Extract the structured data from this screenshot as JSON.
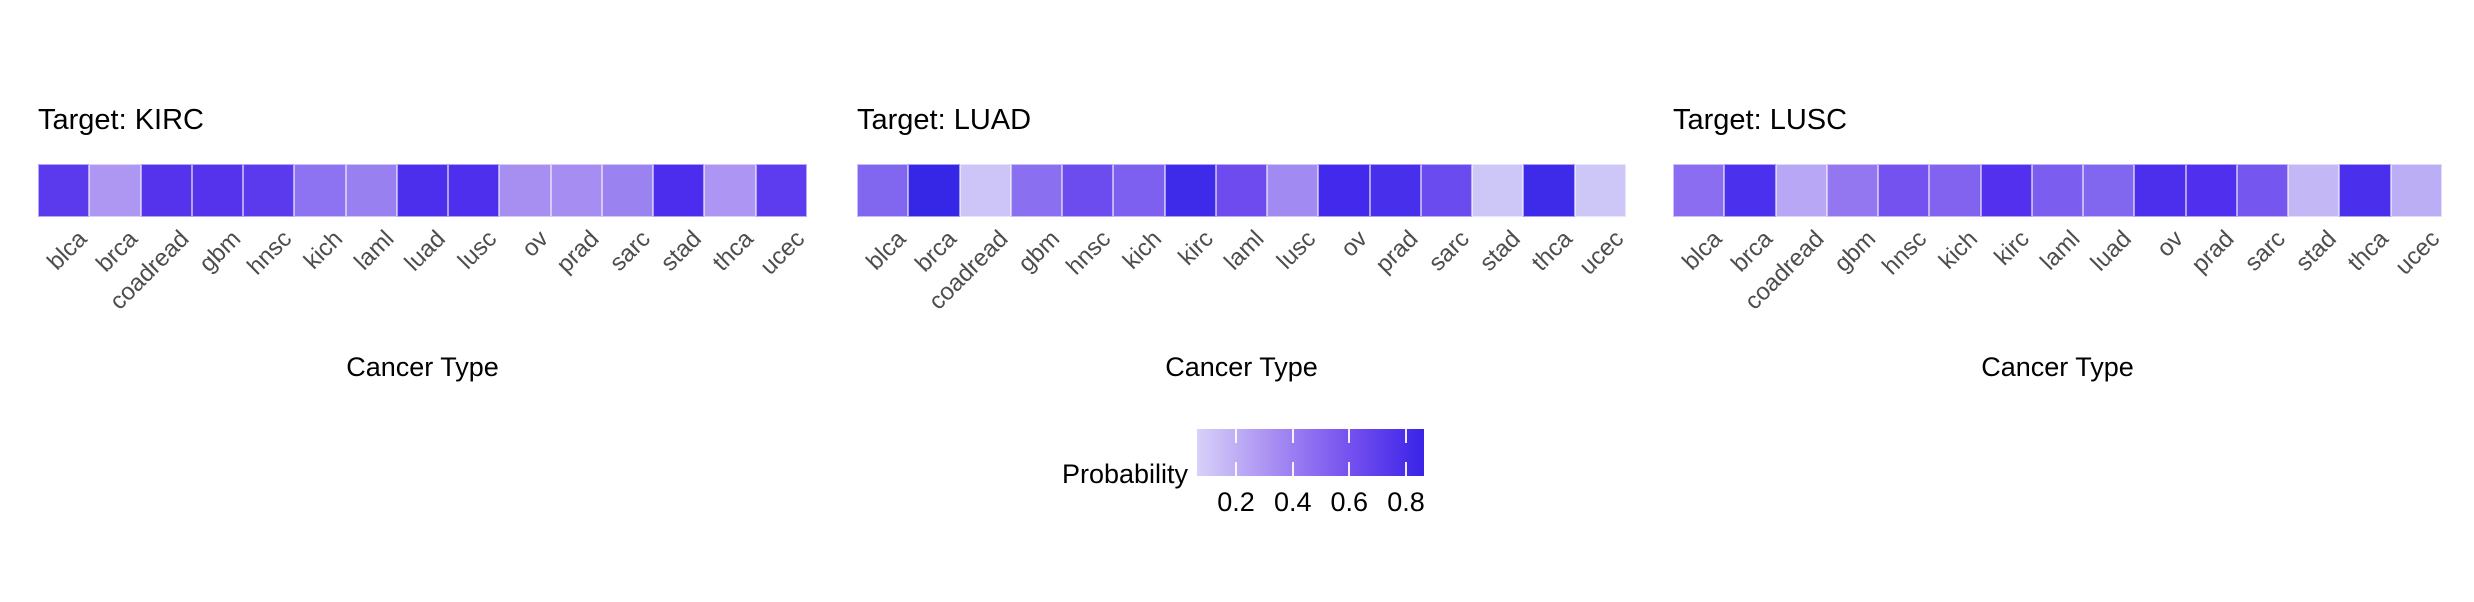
{
  "figure": {
    "background": "#FFFFFF",
    "x_axis_title": "Cancer Type"
  },
  "legend": {
    "title": "Probability",
    "tick_labels": [
      "0.2",
      "0.4",
      "0.6",
      "0.8"
    ],
    "tick_positions_pct": [
      17.2,
      42.2,
      67.1,
      92.1
    ],
    "gradient_stops": [
      "#D8D1F9",
      "#A88FF2",
      "#7551EF",
      "#3A23E8"
    ],
    "orientation": "horizontal"
  },
  "chart_data": [
    {
      "type": "heatmap",
      "title": "Target: KIRC",
      "xlabel": "Cancer Type",
      "legend_title": "Probability",
      "categories": [
        "blca",
        "brca",
        "coadread",
        "gbm",
        "hnsc",
        "kich",
        "laml",
        "luad",
        "lusc",
        "ov",
        "prad",
        "sarc",
        "stad",
        "thca",
        "ucec"
      ],
      "values": [
        0.62,
        0.3,
        0.65,
        0.65,
        0.62,
        0.42,
        0.38,
        0.69,
        0.68,
        0.33,
        0.34,
        0.37,
        0.69,
        0.31,
        0.61
      ],
      "colors": [
        "#5B3AEE",
        "#AE97F3",
        "#5533ED",
        "#5533ED",
        "#5B3AEE",
        "#8D73F1",
        "#9880F1",
        "#4C2EED",
        "#4E2FED",
        "#A78FF2",
        "#A58DF2",
        "#9B82F1",
        "#4C2CED",
        "#AC95F3",
        "#5D3BEE"
      ]
    },
    {
      "type": "heatmap",
      "title": "Target: LUAD",
      "xlabel": "Cancer Type",
      "legend_title": "Probability",
      "categories": [
        "blca",
        "brca",
        "coadread",
        "gbm",
        "hnsc",
        "kich",
        "kirc",
        "laml",
        "lusc",
        "ov",
        "prad",
        "sarc",
        "stad",
        "thca",
        "ucec"
      ],
      "values": [
        0.45,
        0.84,
        0.1,
        0.43,
        0.53,
        0.46,
        0.8,
        0.53,
        0.36,
        0.78,
        0.76,
        0.54,
        0.1,
        0.8,
        0.1
      ],
      "colors": [
        "#8167F0",
        "#3626E6",
        "#CDC4F8",
        "#8A70F0",
        "#6C4BEF",
        "#7E60F0",
        "#3D2BE9",
        "#6D4BEF",
        "#A18AF2",
        "#4329EB",
        "#472FEC",
        "#6A4BEF",
        "#CDC7F8",
        "#3E2BE9",
        "#CDC7F8"
      ]
    },
    {
      "type": "heatmap",
      "title": "Target: LUSC",
      "xlabel": "Cancer Type",
      "legend_title": "Probability",
      "categories": [
        "blca",
        "brca",
        "coadread",
        "gbm",
        "hnsc",
        "kich",
        "kirc",
        "laml",
        "luad",
        "ov",
        "prad",
        "sarc",
        "stad",
        "thca",
        "ucec"
      ],
      "values": [
        0.43,
        0.71,
        0.26,
        0.4,
        0.5,
        0.45,
        0.69,
        0.48,
        0.44,
        0.7,
        0.69,
        0.51,
        0.16,
        0.71,
        0.2
      ],
      "colors": [
        "#8A6DF0",
        "#4B30ED",
        "#B7A7F4",
        "#9377F1",
        "#7352EF",
        "#8163F0",
        "#5230EE",
        "#7B5DEF",
        "#8166F0",
        "#4C2FED",
        "#512FEE",
        "#7557EF",
        "#C3B7F6",
        "#4A2FED",
        "#BBAEF5"
      ]
    }
  ]
}
